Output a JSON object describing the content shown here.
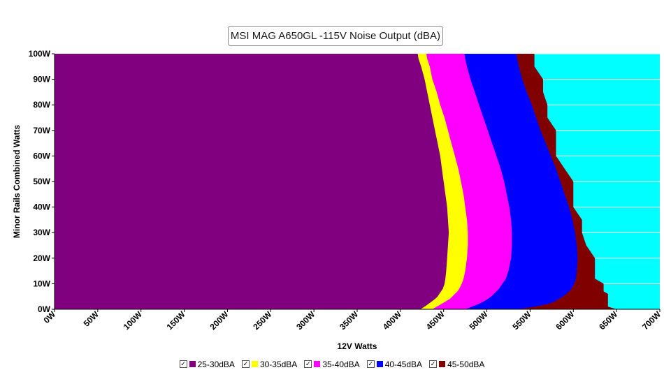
{
  "chart_data": {
    "type": "heatmap",
    "title": "MSI MAG A650GL -115V Noise Output (dBA)",
    "xlabel": "12V Watts",
    "ylabel": "Minor Rails Combined Watts",
    "x_ticks": [
      "0W",
      "50W",
      "100W",
      "150W",
      "200W",
      "250W",
      "300W",
      "350W",
      "400W",
      "450W",
      "500W",
      "550W",
      "600W",
      "650W",
      "700W"
    ],
    "y_ticks": [
      "0W",
      "10W",
      "20W",
      "30W",
      "40W",
      "50W",
      "60W",
      "70W",
      "80W",
      "90W",
      "100W"
    ],
    "xlim": [
      0,
      700
    ],
    "ylim": [
      0,
      100
    ],
    "grid": true,
    "legend_position": "bottom",
    "background_color": "#00ffff",
    "levels": [
      {
        "name": "25-30dBA",
        "color": "#800080"
      },
      {
        "name": "30-35dBA",
        "color": "#ffff00"
      },
      {
        "name": "35-40dBA",
        "color": "#ff00ff"
      },
      {
        "name": "40-45dBA",
        "color": "#0000ff"
      },
      {
        "name": "45-50dBA",
        "color": "#800000"
      }
    ],
    "y_samples": [
      0,
      1,
      2,
      3,
      4,
      5,
      6,
      7,
      8,
      10,
      12,
      15,
      20,
      25,
      30,
      35,
      40,
      45,
      50,
      55,
      60,
      65,
      70,
      75,
      80,
      85,
      90,
      95,
      98,
      100
    ],
    "boundaries": [
      {
        "level": "25-30dBA",
        "x_upper": [
          423,
          428,
          432,
          436,
          440,
          443,
          445,
          447,
          449,
          451,
          452,
          453,
          454,
          455,
          456,
          455,
          454,
          452,
          450,
          448,
          446,
          443,
          440,
          437,
          434,
          431,
          428,
          424,
          421,
          420
        ]
      },
      {
        "name_ref": "30-35dBA",
        "level": "30-35dBA",
        "x_upper": [
          437,
          442,
          447,
          452,
          457,
          460,
          463,
          466,
          468,
          471,
          473,
          475,
          477,
          478,
          478,
          477,
          475,
          473,
          470,
          467,
          463,
          459,
          455,
          451,
          446,
          442,
          437,
          434,
          431,
          430
        ]
      },
      {
        "level": "35-40dBA",
        "x_upper": [
          475,
          483,
          490,
          496,
          501,
          505,
          508,
          511,
          514,
          518,
          522,
          525,
          528,
          529,
          529,
          528,
          526,
          523,
          520,
          516,
          511,
          506,
          501,
          496,
          491,
          486,
          481,
          477,
          475,
          474
        ]
      },
      {
        "level": "40-45dBA",
        "x_upper": [
          536,
          556,
          570,
          578,
          583,
          588,
          592,
          595,
          598,
          601,
          603,
          604,
          605,
          604,
          602,
          599,
          595,
          590,
          585,
          580,
          574,
          568,
          562,
          557,
          552,
          546,
          541,
          537,
          535,
          534
        ]
      },
      {
        "level": "45-50dBA",
        "x_upper": [
          650,
          640,
          640,
          640,
          640,
          640,
          640,
          635,
          635,
          635,
          625,
          625,
          625,
          615,
          610,
          610,
          600,
          600,
          600,
          590,
          580,
          580,
          580,
          570,
          570,
          565,
          565,
          555,
          555,
          555
        ]
      }
    ]
  },
  "legend": [
    {
      "label": "25-30dBA",
      "color": "#800080",
      "checked": true
    },
    {
      "label": "30-35dBA",
      "color": "#ffff00",
      "checked": true
    },
    {
      "label": "35-40dBA",
      "color": "#ff00ff",
      "checked": true
    },
    {
      "label": "40-45dBA",
      "color": "#0000ff",
      "checked": true
    },
    {
      "label": "45-50dBA",
      "color": "#800000",
      "checked": true
    }
  ]
}
